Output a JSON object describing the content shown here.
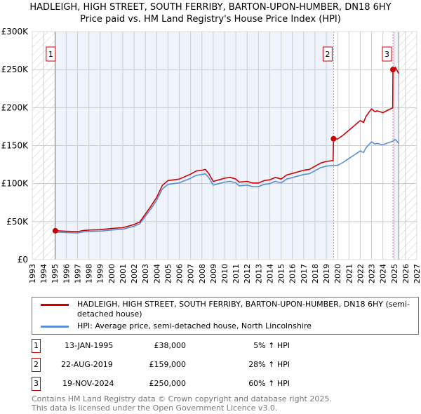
{
  "title": {
    "line1": "HADLEIGH, HIGH STREET, SOUTH FERRIBY, BARTON-UPON-HUMBER, DN18 6HY",
    "line2": "Price paid vs. HM Land Registry's House Price Index (HPI)"
  },
  "colors": {
    "property": "#cc0000",
    "hpi": "#5b8fd4",
    "shade": "#eef3fc",
    "grid": "#cccccc"
  },
  "chart_data": {
    "type": "line",
    "xlim": [
      1993,
      2027
    ],
    "ylim": [
      0,
      300000
    ],
    "yticks": [
      0,
      50000,
      100000,
      150000,
      200000,
      250000,
      300000
    ],
    "ytick_labels": [
      "£0",
      "£50K",
      "£100K",
      "£150K",
      "£200K",
      "£250K",
      "£300K"
    ],
    "xticks": [
      "1993",
      "1994",
      "1995",
      "1996",
      "1997",
      "1998",
      "1999",
      "2000",
      "2001",
      "2002",
      "2003",
      "2004",
      "2005",
      "2006",
      "2007",
      "2008",
      "2009",
      "2010",
      "2011",
      "2012",
      "2013",
      "2014",
      "2015",
      "2016",
      "2017",
      "2018",
      "2019",
      "2020",
      "2021",
      "2022",
      "2023",
      "2024",
      "2025",
      "2026",
      "2027"
    ],
    "data_range": [
      1995.04,
      2025.4
    ],
    "series": [
      {
        "name": "HADLEIGH, HIGH STREET, SOUTH FERRIBY, BARTON-UPON-HUMBER, DN18 6HY (semi-detached house)",
        "x": [
          1995.04,
          1996,
          1997,
          1997.5,
          1998,
          1999,
          2000,
          2001,
          2002,
          2002.5,
          2003,
          2003.5,
          2004,
          2004.5,
          2005,
          2005.5,
          2006,
          2006.5,
          2007,
          2007.5,
          2008,
          2008.3,
          2008.6,
          2009,
          2009.5,
          2010,
          2010.5,
          2011,
          2011.3,
          2012,
          2012.5,
          2013,
          2013.5,
          2014,
          2014.5,
          2015,
          2015.5,
          2016,
          2016.5,
          2017,
          2017.5,
          2018,
          2018.5,
          2019,
          2019.6,
          2019.64,
          2020,
          2020.5,
          2021,
          2021.5,
          2022,
          2022.3,
          2022.5,
          2023,
          2023.3,
          2023.5,
          2024,
          2024.5,
          2024.87,
          2024.89,
          2025.1,
          2025.4
        ],
        "values": [
          38000,
          37300,
          36800,
          38300,
          38900,
          39400,
          41000,
          42000,
          46200,
          49400,
          59900,
          70400,
          81900,
          97700,
          104000,
          105000,
          106000,
          109200,
          112400,
          116600,
          117600,
          118700,
          113400,
          102900,
          105000,
          107100,
          108200,
          106000,
          101900,
          102900,
          100800,
          100800,
          104000,
          105000,
          108200,
          106000,
          111300,
          113400,
          115500,
          117600,
          118700,
          122900,
          127000,
          129200,
          130200,
          159000,
          158700,
          163800,
          170200,
          176600,
          183000,
          180500,
          188200,
          198400,
          194600,
          195800,
          193300,
          197100,
          199700,
          250000,
          253000,
          244800
        ]
      },
      {
        "name": "HPI: Average price, semi-detached house, North Lincolnshire",
        "x": [
          1995.04,
          1996,
          1997,
          1997.5,
          1998,
          1999,
          2000,
          2001,
          2002,
          2002.5,
          2003,
          2003.5,
          2004,
          2004.5,
          2005,
          2005.5,
          2006,
          2006.5,
          2007,
          2007.5,
          2008,
          2008.3,
          2008.6,
          2009,
          2009.5,
          2010,
          2010.5,
          2011,
          2011.3,
          2012,
          2012.5,
          2013,
          2013.5,
          2014,
          2014.5,
          2015,
          2015.5,
          2016,
          2016.5,
          2017,
          2017.5,
          2018,
          2018.5,
          2019,
          2019.6,
          2020,
          2020.5,
          2021,
          2021.5,
          2022,
          2022.3,
          2022.5,
          2023,
          2023.3,
          2023.5,
          2024,
          2024.5,
          2024.9,
          2025.1,
          2025.4
        ],
        "values": [
          36000,
          35500,
          35000,
          36500,
          37000,
          37500,
          39000,
          40000,
          44000,
          47000,
          57000,
          67000,
          78000,
          93000,
          99000,
          100000,
          101000,
          104000,
          107000,
          111000,
          112000,
          113000,
          108000,
          98000,
          100000,
          102000,
          103000,
          101000,
          97000,
          98000,
          96000,
          96000,
          99000,
          100000,
          103000,
          101000,
          106000,
          108000,
          110000,
          112000,
          113000,
          117000,
          121000,
          123000,
          124000,
          124000,
          128000,
          133000,
          138000,
          143000,
          141000,
          147000,
          155000,
          152000,
          153000,
          151000,
          154000,
          156000,
          158000,
          153000
        ]
      }
    ],
    "sales": [
      {
        "label": "1",
        "x": 1995.04,
        "value": 38000
      },
      {
        "label": "2",
        "x": 2019.64,
        "value": 159000
      },
      {
        "label": "3",
        "x": 2024.89,
        "value": 250000
      }
    ]
  },
  "legend": {
    "property": "HADLEIGH, HIGH STREET, SOUTH FERRIBY, BARTON-UPON-HUMBER, DN18 6HY (semi-detached house)",
    "hpi": "HPI: Average price, semi-detached house, North Lincolnshire"
  },
  "transactions": [
    {
      "num": "1",
      "date": "13-JAN-1995",
      "price": "£38,000",
      "hpi": "5% ↑ HPI"
    },
    {
      "num": "2",
      "date": "22-AUG-2019",
      "price": "£159,000",
      "hpi": "28% ↑ HPI"
    },
    {
      "num": "3",
      "date": "19-NOV-2024",
      "price": "£250,000",
      "hpi": "60% ↑ HPI"
    }
  ],
  "footer": {
    "line1": "Contains HM Land Registry data © Crown copyright and database right 2025.",
    "line2": "This data is licensed under the Open Government Licence v3.0."
  }
}
